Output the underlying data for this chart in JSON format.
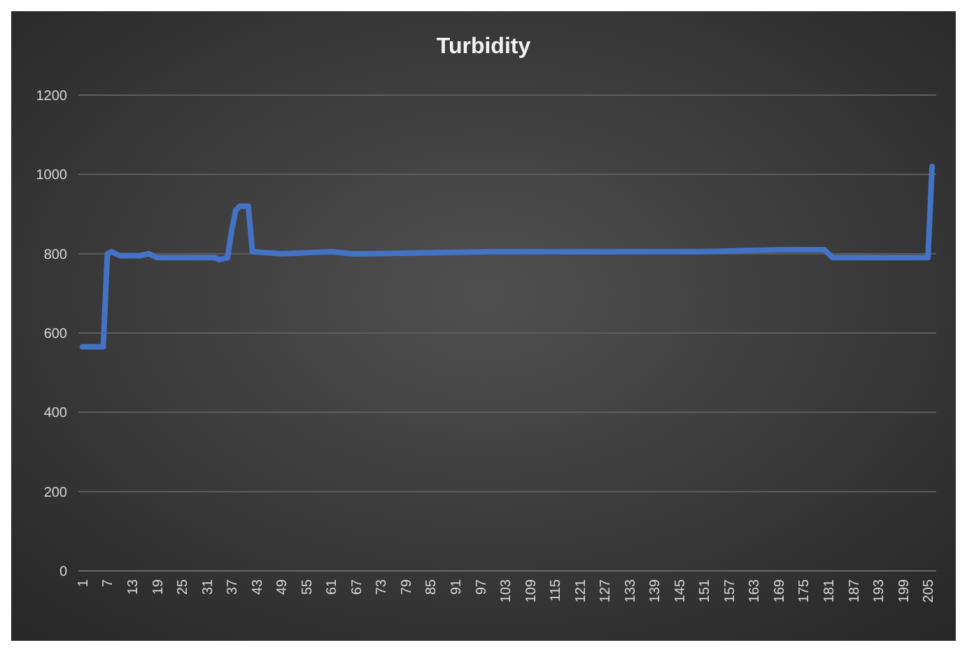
{
  "chart_data": {
    "type": "line",
    "title": "Turbidity",
    "xlim": [
      0,
      207
    ],
    "xticks": [
      1,
      7,
      13,
      19,
      25,
      31,
      37,
      43,
      49,
      55,
      61,
      67,
      73,
      79,
      85,
      91,
      97,
      103,
      109,
      115,
      121,
      127,
      133,
      139,
      145,
      151,
      157,
      163,
      169,
      175,
      181,
      187,
      193,
      199,
      205
    ],
    "ylim": [
      0,
      1200
    ],
    "yticks": [
      0,
      200,
      400,
      600,
      800,
      1000,
      1200
    ],
    "grid": "y",
    "marker": "none",
    "line_style": "solid",
    "series": [
      {
        "color": "#4472c4",
        "x": [
          1,
          6,
          7,
          8,
          10,
          15,
          17,
          19,
          33,
          34,
          36,
          37,
          38,
          39,
          41,
          42,
          49,
          61,
          66,
          70,
          100,
          130,
          150,
          160,
          170,
          180,
          182,
          190,
          205,
          206
        ],
        "values": [
          565,
          565,
          800,
          805,
          795,
          795,
          800,
          790,
          790,
          785,
          790,
          860,
          910,
          920,
          920,
          805,
          800,
          805,
          800,
          800,
          805,
          805,
          805,
          808,
          810,
          810,
          790,
          790,
          790,
          1020
        ]
      }
    ]
  }
}
